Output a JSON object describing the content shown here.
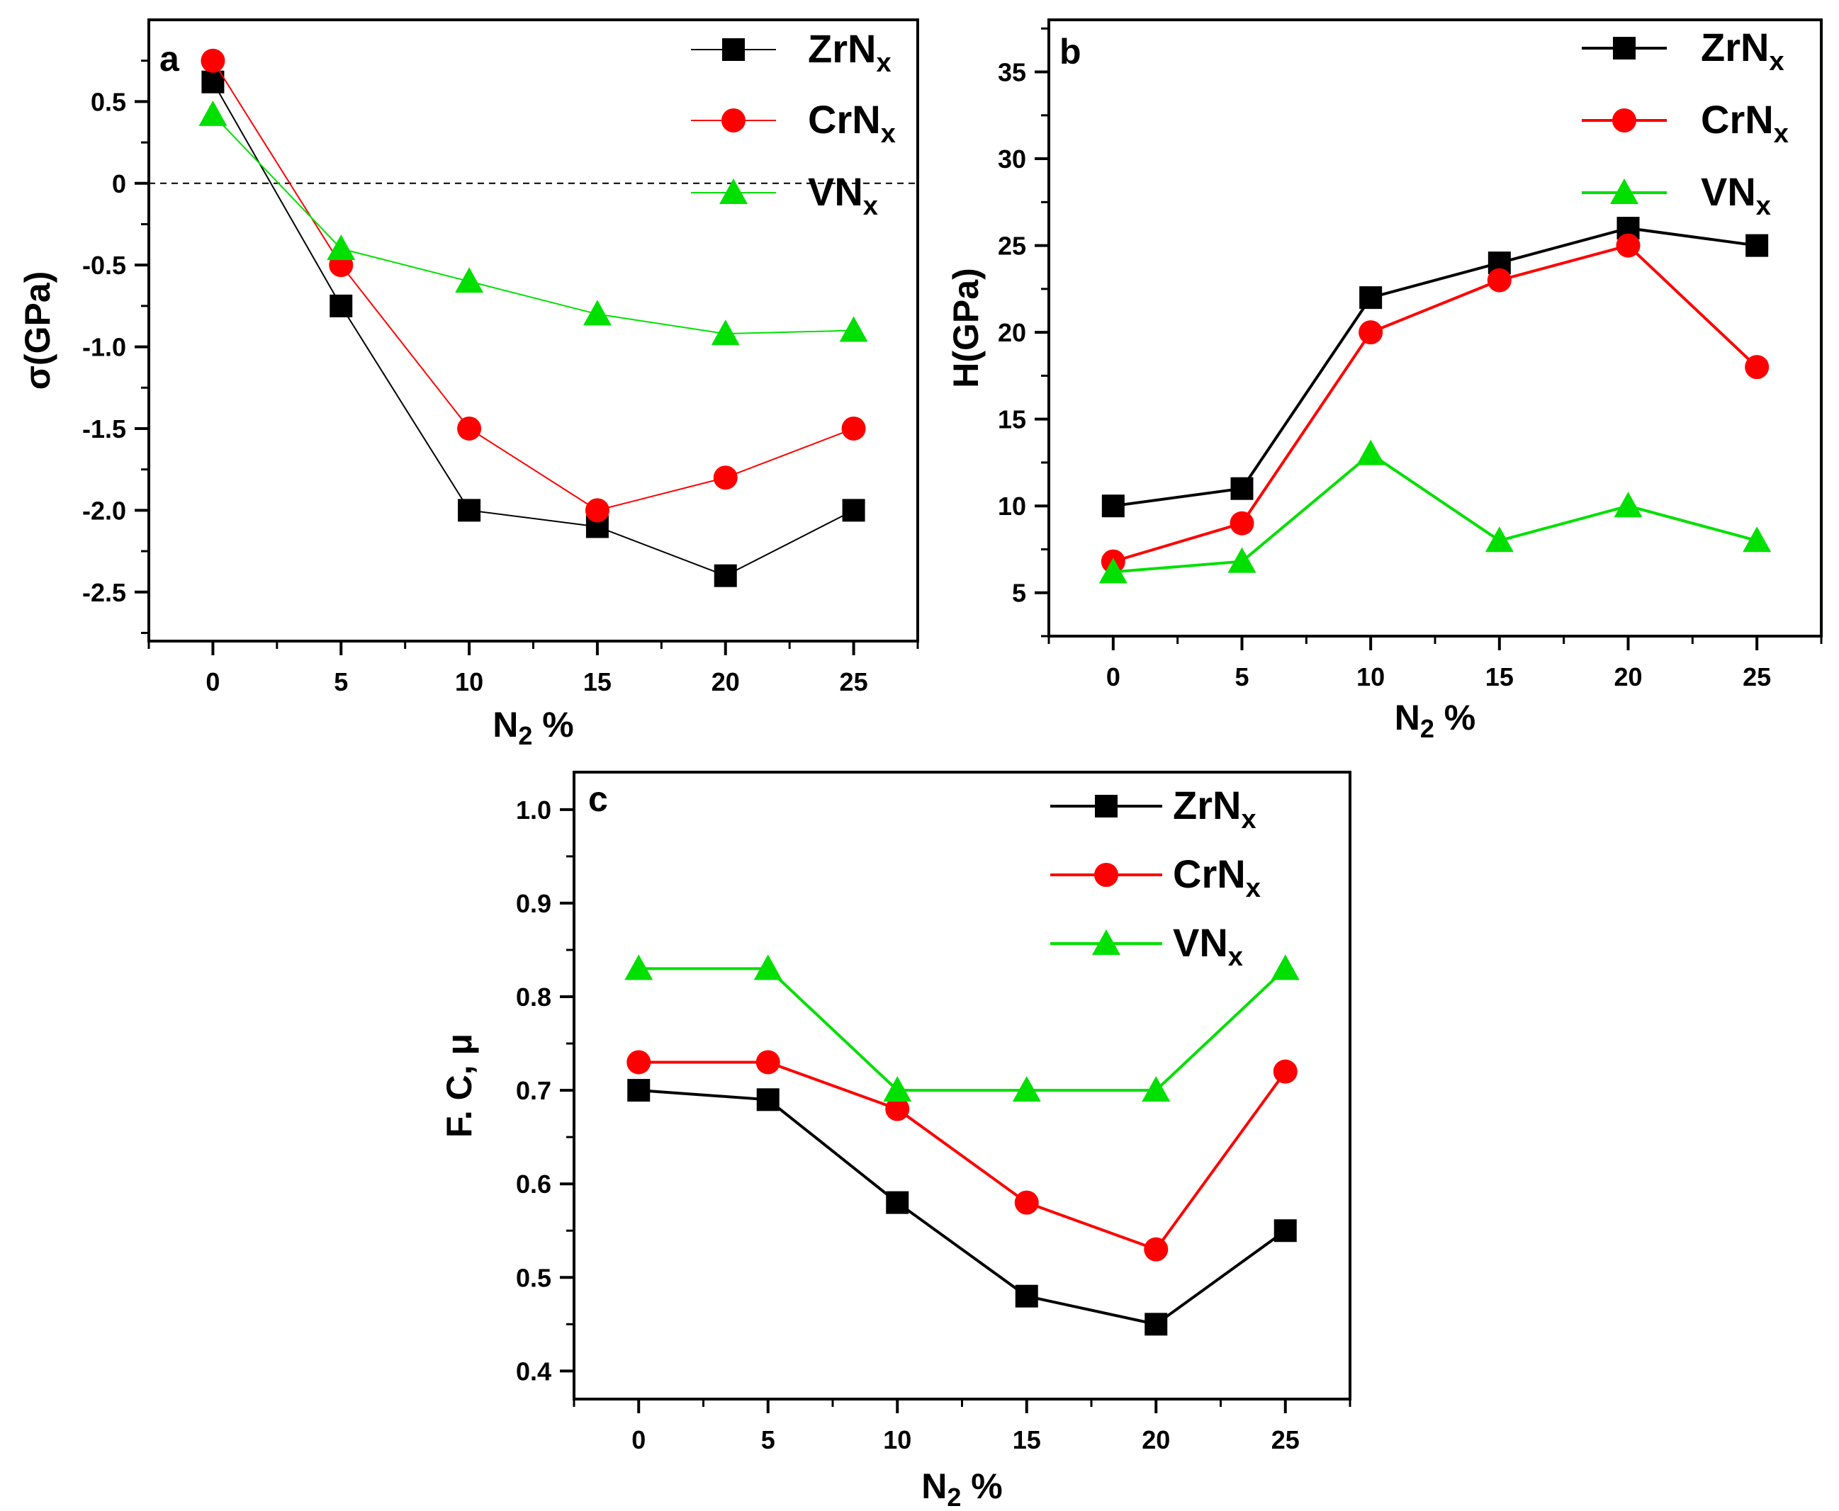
{
  "chart_data": [
    {
      "type": "line",
      "panel_label": "a",
      "x": [
        0,
        5,
        10,
        15,
        20,
        25
      ],
      "xticks": [
        "0",
        "5",
        "10",
        "15",
        "20",
        "25"
      ],
      "xlabel_main": "N",
      "xlabel_sub": "2",
      "xlabel_tail": " %",
      "ylabel": "σ(GPa)",
      "ylim": [
        -2.8,
        1.0
      ],
      "yticks": [
        0.5,
        0,
        -0.5,
        -1.0,
        -1.5,
        -2.0,
        -2.5
      ],
      "ytick_labels": [
        "0.5",
        "0",
        "-0.5",
        "-1.0",
        "-1.5",
        "-2.0",
        "-2.5"
      ],
      "reference_line": 0,
      "legend_position": "top-right",
      "series": [
        {
          "name_main": "ZrN",
          "name_sub": "x",
          "color": "#000000",
          "marker": "square",
          "values": [
            0.62,
            -0.75,
            -2.0,
            -2.1,
            -2.4,
            -2.0
          ]
        },
        {
          "name_main": "CrN",
          "name_sub": "x",
          "color": "#ff0000",
          "marker": "circle",
          "values": [
            0.75,
            -0.5,
            -1.5,
            -2.0,
            -1.8,
            -1.5
          ]
        },
        {
          "name_main": "VN",
          "name_sub": "x",
          "color": "#00e000",
          "marker": "triangle",
          "values": [
            0.42,
            -0.4,
            -0.6,
            -0.8,
            -0.92,
            -0.9
          ]
        }
      ]
    },
    {
      "type": "line",
      "panel_label": "b",
      "x": [
        0,
        5,
        10,
        15,
        20,
        25
      ],
      "xticks": [
        "0",
        "5",
        "10",
        "15",
        "20",
        "25"
      ],
      "xlabel_main": "N",
      "xlabel_sub": "2",
      "xlabel_tail": " %",
      "ylabel": "H(GPa)",
      "ylim": [
        2.5,
        38.0
      ],
      "yticks": [
        5,
        10,
        15,
        20,
        25,
        30,
        35
      ],
      "ytick_labels": [
        "5",
        "10",
        "15",
        "20",
        "25",
        "30",
        "35"
      ],
      "legend_position": "top-right",
      "series": [
        {
          "name_main": "ZrN",
          "name_sub": "x",
          "color": "#000000",
          "marker": "square",
          "values": [
            10,
            11,
            22,
            24,
            26,
            25
          ]
        },
        {
          "name_main": "CrN",
          "name_sub": "x",
          "color": "#ff0000",
          "marker": "circle",
          "values": [
            6.8,
            9,
            20,
            23,
            25,
            18
          ]
        },
        {
          "name_main": "VN",
          "name_sub": "x",
          "color": "#00e000",
          "marker": "triangle",
          "values": [
            6.2,
            6.8,
            13,
            8,
            10,
            8
          ]
        }
      ]
    },
    {
      "type": "line",
      "panel_label": "c",
      "x": [
        0,
        5,
        10,
        15,
        20,
        25
      ],
      "xticks": [
        "0",
        "5",
        "10",
        "15",
        "20",
        "25"
      ],
      "xlabel_main": "N",
      "xlabel_sub": "2",
      "xlabel_tail": " %",
      "ylabel": "F. C, μ",
      "ylim": [
        0.37,
        1.04
      ],
      "yticks": [
        0.4,
        0.5,
        0.6,
        0.7,
        0.8,
        0.9,
        1.0
      ],
      "ytick_labels": [
        "0.4",
        "0.5",
        "0.6",
        "0.7",
        "0.8",
        "0.9",
        "1.0"
      ],
      "legend_position": "top-right",
      "series": [
        {
          "name_main": "ZrN",
          "name_sub": "x",
          "color": "#000000",
          "marker": "square",
          "values": [
            0.7,
            0.69,
            0.58,
            0.48,
            0.45,
            0.55
          ]
        },
        {
          "name_main": "CrN",
          "name_sub": "x",
          "color": "#ff0000",
          "marker": "circle",
          "values": [
            0.73,
            0.73,
            0.68,
            0.58,
            0.53,
            0.72
          ]
        },
        {
          "name_main": "VN",
          "name_sub": "x",
          "color": "#00e000",
          "marker": "triangle",
          "values": [
            0.83,
            0.83,
            0.7,
            0.7,
            0.7,
            0.83
          ]
        }
      ]
    }
  ]
}
